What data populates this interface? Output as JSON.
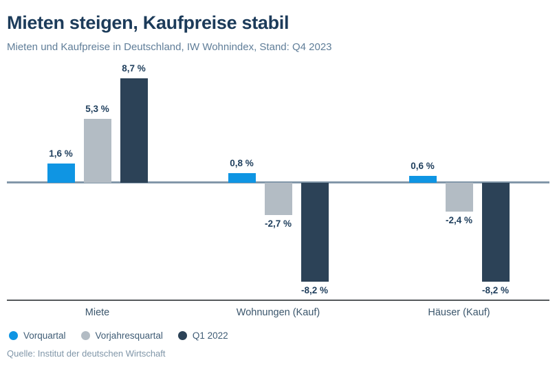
{
  "header": {
    "title": "Mieten steigen, Kaufpreise stabil",
    "subtitle": "Mieten und Kaufpreise in Deutschland, IW Wohnindex, Stand: Q4 2023"
  },
  "source": "Quelle: Institut der deutschen Wirtschaft",
  "chart_data": {
    "type": "bar",
    "title": "Mieten steigen, Kaufpreise stabil",
    "subtitle": "Mieten und Kaufpreise in Deutschland, IW Wohnindex, Stand: Q4 2023",
    "categories": [
      "Miete",
      "Wohnungen (Kauf)",
      "Häuser (Kauf)"
    ],
    "series": [
      {
        "name": "Vorquartal",
        "color": "#0f95e3",
        "values": [
          1.6,
          0.8,
          0.6
        ],
        "labels": [
          "1,6 %",
          "0,8 %",
          "0,6 %"
        ]
      },
      {
        "name": "Vorjahresquartal",
        "color": "#b3bcc4",
        "values": [
          5.3,
          -2.7,
          -2.4
        ],
        "labels": [
          "5,3 %",
          "-2,7 %",
          "-2,4 %"
        ]
      },
      {
        "name": "Q1 2022",
        "color": "#2c4257",
        "values": [
          8.7,
          -8.2,
          -8.2
        ],
        "labels": [
          "8,7 %",
          "-8,2 %",
          "-8,2 %"
        ]
      }
    ],
    "unit": "%",
    "ylim": [
      -10,
      10
    ],
    "grid": false,
    "value_labels": true,
    "legend_position": "bottom-left",
    "xlabel": "",
    "ylabel": ""
  },
  "colors": {
    "background": "#ffffff",
    "title": "#1c3b5a",
    "subtitle": "#5f7d98",
    "zero_line": "#8297a9",
    "bottom_line": "#54585b",
    "value_label": "#21405e",
    "category_label": "#3b566c",
    "legend_text": "#3f5c75",
    "source": "#8096a8"
  }
}
